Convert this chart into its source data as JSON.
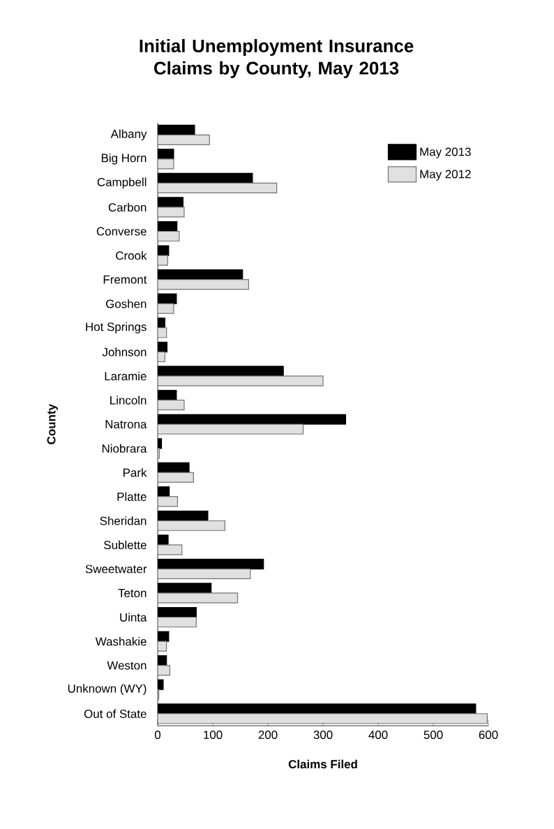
{
  "chart_data": {
    "type": "bar",
    "orientation": "horizontal",
    "title": "Initial Unemployment Insurance Claims by County, May 2013",
    "xlabel": "Claims Filed",
    "ylabel": "County",
    "categories": [
      "Albany",
      "Big Horn",
      "Campbell",
      "Carbon",
      "Converse",
      "Crook",
      "Fremont",
      "Goshen",
      "Hot Springs",
      "Johnson",
      "Laramie",
      "Lincoln",
      "Natrona",
      "Niobrara",
      "Park",
      "Platte",
      "Sheridan",
      "Sublette",
      "Sweetwater",
      "Teton",
      "Uinta",
      "Washakie",
      "Weston",
      "Unknown (WY)",
      "Out of State"
    ],
    "series": [
      {
        "name": "May 2013",
        "color": "#000000",
        "values": [
          67,
          29,
          172,
          46,
          35,
          20,
          154,
          34,
          13,
          17,
          228,
          34,
          341,
          7,
          57,
          21,
          91,
          19,
          192,
          97,
          70,
          20,
          16,
          10,
          577
        ]
      },
      {
        "name": "May 2012",
        "color": "#e0e0e0",
        "values": [
          94,
          29,
          216,
          48,
          39,
          18,
          165,
          29,
          16,
          13,
          300,
          48,
          264,
          3,
          65,
          36,
          122,
          44,
          168,
          145,
          70,
          16,
          22,
          2,
          598
        ]
      }
    ],
    "xlim": [
      0,
      600
    ],
    "xticks": [
      0,
      100,
      200,
      300,
      400,
      500,
      600
    ],
    "legend": "top right"
  }
}
